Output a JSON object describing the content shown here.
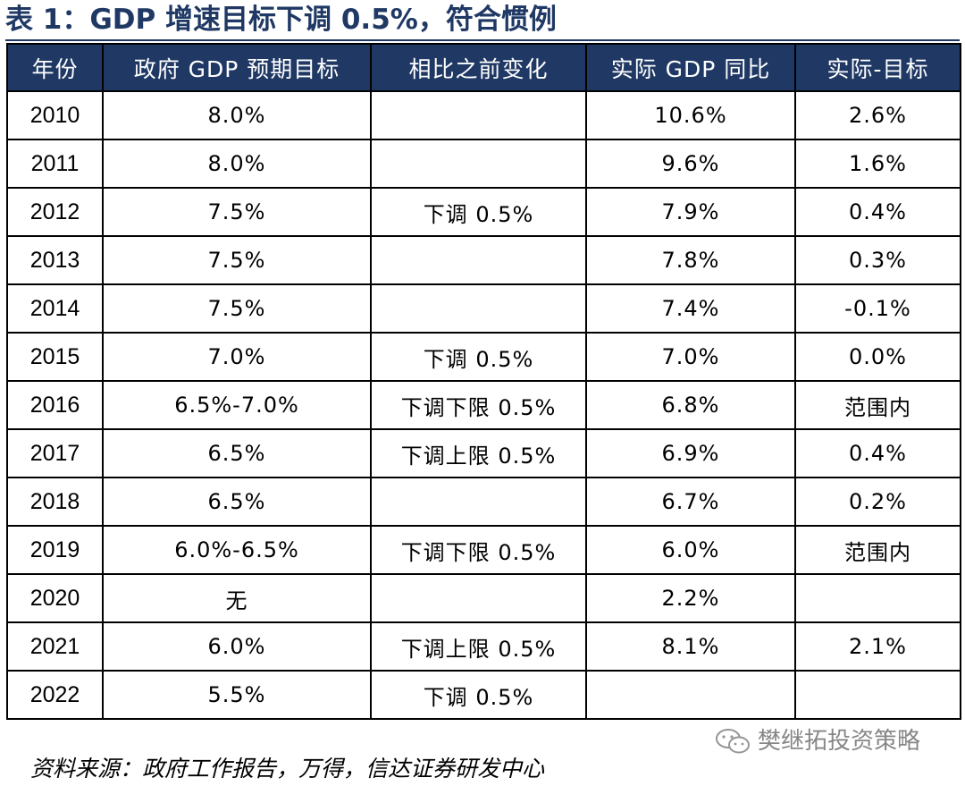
{
  "title": "表 1：GDP 增速目标下调 0.5%，符合惯例",
  "table": {
    "headers": [
      "年份",
      "政府 GDP 预期目标",
      "相比之前变化",
      "实际 GDP 同比",
      "实际-目标"
    ],
    "rows": [
      {
        "year": "2010",
        "target": "8.0%",
        "change": "",
        "actual": "10.6%",
        "diff": "2.6%"
      },
      {
        "year": "2011",
        "target": "8.0%",
        "change": "",
        "actual": "9.6%",
        "diff": "1.6%"
      },
      {
        "year": "2012",
        "target": "7.5%",
        "change": "下调 0.5%",
        "actual": "7.9%",
        "diff": "0.4%"
      },
      {
        "year": "2013",
        "target": "7.5%",
        "change": "",
        "actual": "7.8%",
        "diff": "0.3%"
      },
      {
        "year": "2014",
        "target": "7.5%",
        "change": "",
        "actual": "7.4%",
        "diff": "-0.1%"
      },
      {
        "year": "2015",
        "target": "7.0%",
        "change": "下调 0.5%",
        "actual": "7.0%",
        "diff": "0.0%"
      },
      {
        "year": "2016",
        "target": "6.5%-7.0%",
        "change": "下调下限 0.5%",
        "actual": "6.8%",
        "diff": "范围内"
      },
      {
        "year": "2017",
        "target": "6.5%",
        "change": "下调上限 0.5%",
        "actual": "6.9%",
        "diff": "0.4%"
      },
      {
        "year": "2018",
        "target": "6.5%",
        "change": "",
        "actual": "6.7%",
        "diff": "0.2%"
      },
      {
        "year": "2019",
        "target": "6.0%-6.5%",
        "change": "下调下限 0.5%",
        "actual": "6.0%",
        "diff": "范围内"
      },
      {
        "year": "2020",
        "target": "无",
        "change": "",
        "actual": "2.2%",
        "diff": ""
      },
      {
        "year": "2021",
        "target": "6.0%",
        "change": "下调上限 0.5%",
        "actual": "8.1%",
        "diff": "2.1%"
      },
      {
        "year": "2022",
        "target": "5.5%",
        "change": "下调 0.5%",
        "actual": "",
        "diff": ""
      }
    ]
  },
  "source": "资料来源：政府工作报告，万得，信达证券研发中心",
  "watermark": "樊继拓投资策略",
  "colors": {
    "header_bg": "#1f3864",
    "header_text": "#ffffff",
    "title_text": "#1f3864",
    "border": "#000000"
  }
}
